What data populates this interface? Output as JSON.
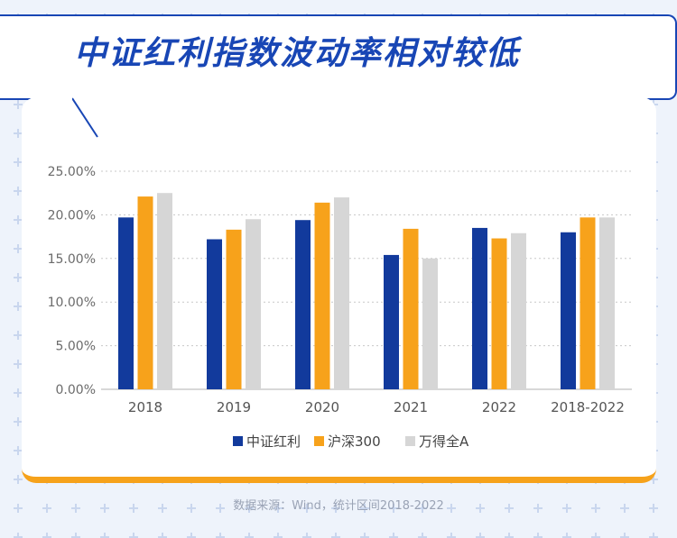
{
  "title": "中证红利指数波动率相对较低",
  "source": "数据来源：Wind，统计区间2018-2022",
  "colors": {
    "accent": "#1846b5",
    "orange": "#f6a21b",
    "bg": "#eef3fb"
  },
  "chart_data": {
    "type": "bar",
    "categories": [
      "2018",
      "2019",
      "2020",
      "2021",
      "2022",
      "2018-2022"
    ],
    "series": [
      {
        "name": "中证红利",
        "color": "#123a9c",
        "values": [
          19.7,
          17.2,
          19.4,
          15.4,
          18.5,
          18.0
        ]
      },
      {
        "name": "沪深300",
        "color": "#f7a21b",
        "values": [
          22.1,
          18.3,
          21.4,
          18.4,
          17.3,
          19.7
        ]
      },
      {
        "name": "万得全A",
        "color": "#d6d6d6",
        "values": [
          22.5,
          19.5,
          22.0,
          15.0,
          17.9,
          19.7
        ]
      }
    ],
    "yticks": [
      "0.00%",
      "5.00%",
      "10.00%",
      "15.00%",
      "20.00%",
      "25.00%"
    ],
    "ylim": [
      0,
      25
    ],
    "grid": true,
    "legend": "bottom",
    "title": "",
    "xlabel": "",
    "ylabel": ""
  }
}
